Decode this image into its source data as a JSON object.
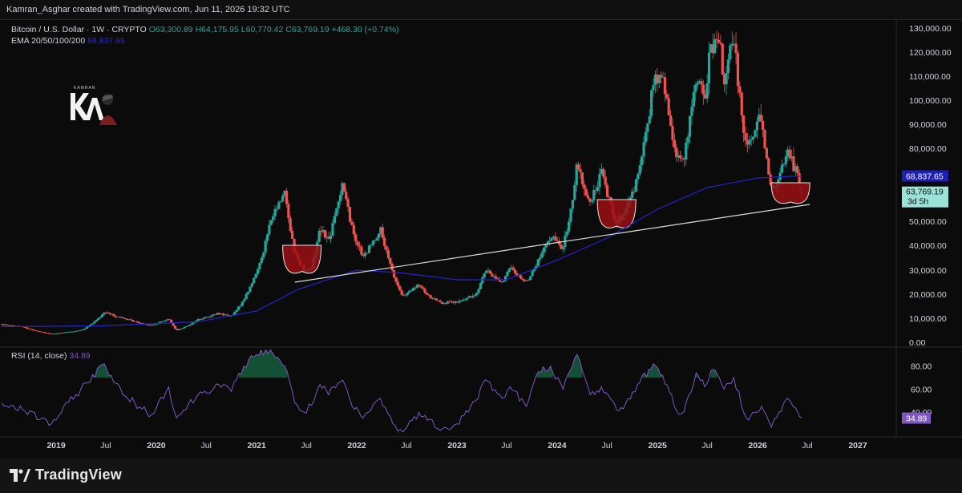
{
  "header": {
    "attribution": "Kamran_Asghar created with TradingView.com, Jun 11, 2026 19:32 UTC"
  },
  "legend": {
    "symbol": "Bitcoin / U.S. Dollar · 1W · CRYPTO",
    "open": "O63,300.89",
    "high": "H64,175.95",
    "low": "L60,770.42",
    "close": "C63,769.19",
    "change": "+468.30 (+0.74%)",
    "ema_label": "EMA 20/50/100/200",
    "ema_value": "68,837.65"
  },
  "rsi_legend": {
    "label": "RSI (14, close)",
    "value": "34.89"
  },
  "footer": {
    "brand": "TradingView"
  },
  "watermark": {
    "text": "KAMRAN"
  },
  "chart_data": [
    {
      "type": "candlestick",
      "title": "Bitcoin / U.S. Dollar · 1W · CRYPTO",
      "interval": "1W",
      "y_scale": "log",
      "ylim": [
        0,
        130000
      ],
      "y_ticks": [
        "130,000.00",
        "120,000.00",
        "110,000.00",
        "100,000.00",
        "90,000.00",
        "80,000.00",
        "70,000.00",
        "60,000.00",
        "50,000.00",
        "40,000.00",
        "30,000.00",
        "20,000.00",
        "10,000.00",
        "0.00"
      ],
      "y_tick_values": [
        130000,
        120000,
        110000,
        100000,
        90000,
        80000,
        70000,
        60000,
        50000,
        40000,
        30000,
        20000,
        10000,
        0
      ],
      "x_ticks": [
        "2019",
        "Jul",
        "2020",
        "Jul",
        "2021",
        "Jul",
        "2022",
        "Jul",
        "2023",
        "Jul",
        "2024",
        "Jul",
        "2025",
        "Jul",
        "2026",
        "Jul",
        "2027"
      ],
      "x_tick_dates": [
        "2019-01-01",
        "2019-07-01",
        "2020-01-01",
        "2020-07-01",
        "2021-01-01",
        "2021-07-01",
        "2022-01-01",
        "2022-07-01",
        "2023-01-01",
        "2023-07-01",
        "2024-01-01",
        "2024-07-01",
        "2025-01-01",
        "2025-07-01",
        "2026-01-01",
        "2026-07-01",
        "2027-01-01"
      ],
      "price_path": [
        [
          "2018-05-01",
          8000
        ],
        [
          "2018-09-01",
          6500
        ],
        [
          "2018-12-15",
          3400
        ],
        [
          "2019-04-01",
          5000
        ],
        [
          "2019-06-26",
          12500
        ],
        [
          "2019-09-01",
          10000
        ],
        [
          "2019-12-15",
          7000
        ],
        [
          "2020-02-15",
          10000
        ],
        [
          "2020-03-15",
          5000
        ],
        [
          "2020-06-01",
          9500
        ],
        [
          "2020-08-15",
          12000
        ],
        [
          "2020-10-01",
          10800
        ],
        [
          "2020-11-15",
          18000
        ],
        [
          "2020-12-31",
          29000
        ],
        [
          "2021-02-20",
          50000
        ],
        [
          "2021-04-14",
          63000
        ],
        [
          "2021-05-20",
          37000
        ],
        [
          "2021-06-22",
          30000
        ],
        [
          "2021-07-20",
          31000
        ],
        [
          "2021-08-20",
          48000
        ],
        [
          "2021-09-20",
          42000
        ],
        [
          "2021-11-10",
          67000
        ],
        [
          "2021-12-15",
          47000
        ],
        [
          "2022-01-24",
          35000
        ],
        [
          "2022-03-28",
          47000
        ],
        [
          "2022-05-12",
          29000
        ],
        [
          "2022-06-18",
          19000
        ],
        [
          "2022-08-15",
          24000
        ],
        [
          "2022-09-15",
          19500
        ],
        [
          "2022-11-10",
          16500
        ],
        [
          "2022-12-31",
          16500
        ],
        [
          "2023-03-10",
          20000
        ],
        [
          "2023-04-14",
          30000
        ],
        [
          "2023-06-15",
          25000
        ],
        [
          "2023-07-14",
          31000
        ],
        [
          "2023-09-11",
          25000
        ],
        [
          "2023-10-25",
          34000
        ],
        [
          "2023-12-08",
          44000
        ],
        [
          "2024-01-23",
          39000
        ],
        [
          "2024-03-14",
          73000
        ],
        [
          "2024-05-01",
          57000
        ],
        [
          "2024-06-10",
          71000
        ],
        [
          "2024-08-05",
          50000
        ],
        [
          "2024-09-06",
          53000
        ],
        [
          "2024-10-29",
          72000
        ],
        [
          "2024-12-17",
          108000
        ],
        [
          "2025-01-20",
          109000
        ],
        [
          "2025-03-10",
          78000
        ],
        [
          "2025-04-07",
          75000
        ],
        [
          "2025-05-22",
          111000
        ],
        [
          "2025-06-22",
          100000
        ],
        [
          "2025-07-14",
          123000
        ],
        [
          "2025-08-14",
          124000
        ],
        [
          "2025-09-01",
          108000
        ],
        [
          "2025-10-06",
          126000
        ],
        [
          "2025-11-21",
          81000
        ],
        [
          "2025-12-15",
          86000
        ],
        [
          "2026-01-15",
          95000
        ],
        [
          "2026-02-20",
          62000
        ],
        [
          "2026-03-20",
          68000
        ],
        [
          "2026-04-20",
          80000
        ],
        [
          "2026-05-10",
          74000
        ],
        [
          "2026-06-11",
          63769.19
        ]
      ],
      "last_close": 63769.19,
      "countdown": "3d 5h",
      "ema": {
        "label": "EMA 20/50/100/200",
        "last_value": 68837.65,
        "color": "#2424c8",
        "path": [
          [
            "2018-05-01",
            6500
          ],
          [
            "2019-06-01",
            6800
          ],
          [
            "2020-06-01",
            8500
          ],
          [
            "2020-12-31",
            13000
          ],
          [
            "2021-06-01",
            22000
          ],
          [
            "2022-01-01",
            30000
          ],
          [
            "2022-06-01",
            29000
          ],
          [
            "2023-01-01",
            26000
          ],
          [
            "2023-07-01",
            26000
          ],
          [
            "2024-01-01",
            34000
          ],
          [
            "2024-07-01",
            43000
          ],
          [
            "2025-01-01",
            55000
          ],
          [
            "2025-07-01",
            64000
          ],
          [
            "2026-01-01",
            68000
          ],
          [
            "2026-06-11",
            68837.65
          ]
        ]
      },
      "trendline": {
        "color": "#dddddd",
        "start": [
          "2021-05-20",
          25000
        ],
        "end": [
          "2026-07-10",
          57000
        ]
      },
      "highlights": [
        {
          "center": "2021-06-15",
          "top": 40000,
          "bottom": 29500,
          "color": "#9b0f14"
        },
        {
          "center": "2024-08-05",
          "top": 59000,
          "bottom": 48000,
          "color": "#9b0f14"
        },
        {
          "center": "2026-05-01",
          "top": 66000,
          "bottom": 58000,
          "color": "#9b0f14"
        }
      ],
      "colors": {
        "up": "#26a69a",
        "down": "#ef5350",
        "background": "#0b0b0b"
      },
      "price_labels": [
        {
          "value": "68,837.65",
          "bg": "#1e1eb8",
          "color": "#ffffff"
        },
        {
          "value": "63,769.19",
          "bg": "#9be3d8",
          "color": "#0b0b0b"
        },
        {
          "value": "3d 5h",
          "bg": "#9be3d8",
          "color": "#0b0b0b"
        }
      ]
    },
    {
      "type": "line",
      "title": "RSI (14, close)",
      "ylim": [
        20,
        95
      ],
      "y_ticks": [
        "80.00",
        "60.00",
        "40.00"
      ],
      "y_tick_values": [
        80,
        60,
        40
      ],
      "color": "#7e57c2",
      "last_value": 34.89,
      "overbought": 70,
      "points": [
        [
          "2018-05-01",
          48
        ],
        [
          "2018-09-01",
          42
        ],
        [
          "2018-12-15",
          30
        ],
        [
          "2019-04-01",
          60
        ],
        [
          "2019-06-26",
          82
        ],
        [
          "2019-09-01",
          55
        ],
        [
          "2019-12-15",
          38
        ],
        [
          "2020-02-15",
          62
        ],
        [
          "2020-03-15",
          35
        ],
        [
          "2020-06-01",
          55
        ],
        [
          "2020-08-15",
          64
        ],
        [
          "2020-10-01",
          58
        ],
        [
          "2020-11-15",
          80
        ],
        [
          "2020-12-31",
          90
        ],
        [
          "2021-02-20",
          94
        ],
        [
          "2021-04-14",
          80
        ],
        [
          "2021-05-20",
          48
        ],
        [
          "2021-06-22",
          40
        ],
        [
          "2021-07-20",
          46
        ],
        [
          "2021-08-20",
          64
        ],
        [
          "2021-09-20",
          55
        ],
        [
          "2021-11-10",
          68
        ],
        [
          "2021-12-15",
          45
        ],
        [
          "2022-01-24",
          35
        ],
        [
          "2022-03-28",
          52
        ],
        [
          "2022-05-12",
          30
        ],
        [
          "2022-06-18",
          23
        ],
        [
          "2022-08-15",
          40
        ],
        [
          "2022-09-15",
          33
        ],
        [
          "2022-11-10",
          26
        ],
        [
          "2022-12-31",
          30
        ],
        [
          "2023-03-10",
          50
        ],
        [
          "2023-04-14",
          68
        ],
        [
          "2023-06-15",
          52
        ],
        [
          "2023-07-14",
          62
        ],
        [
          "2023-09-11",
          45
        ],
        [
          "2023-10-25",
          75
        ],
        [
          "2023-12-08",
          80
        ],
        [
          "2024-01-23",
          60
        ],
        [
          "2024-03-14",
          90
        ],
        [
          "2024-05-01",
          55
        ],
        [
          "2024-06-10",
          62
        ],
        [
          "2024-08-05",
          42
        ],
        [
          "2024-09-06",
          47
        ],
        [
          "2024-10-29",
          66
        ],
        [
          "2024-12-17",
          82
        ],
        [
          "2025-01-20",
          72
        ],
        [
          "2025-03-10",
          42
        ],
        [
          "2025-04-07",
          40
        ],
        [
          "2025-05-22",
          74
        ],
        [
          "2025-06-22",
          62
        ],
        [
          "2025-07-14",
          76
        ],
        [
          "2025-08-14",
          70
        ],
        [
          "2025-09-01",
          60
        ],
        [
          "2025-10-06",
          70
        ],
        [
          "2025-11-21",
          35
        ],
        [
          "2025-12-15",
          40
        ],
        [
          "2026-01-15",
          45
        ],
        [
          "2026-02-20",
          27
        ],
        [
          "2026-03-20",
          40
        ],
        [
          "2026-04-20",
          52
        ],
        [
          "2026-05-10",
          45
        ],
        [
          "2026-06-11",
          34.89
        ]
      ]
    }
  ]
}
